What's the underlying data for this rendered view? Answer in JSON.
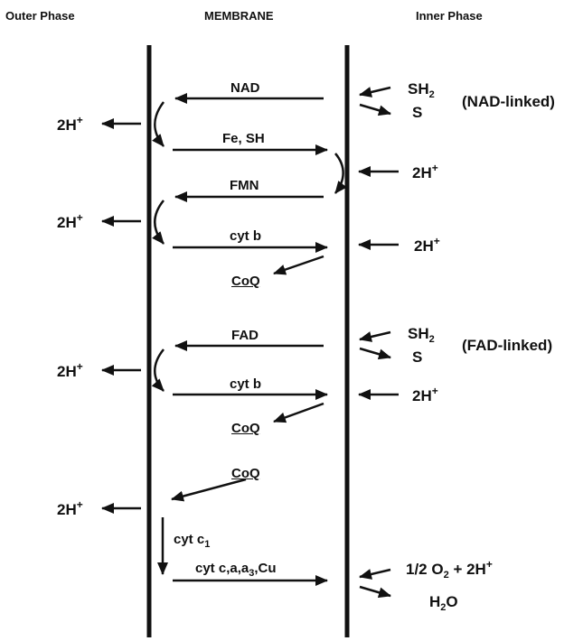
{
  "headers": {
    "outer": "Outer Phase",
    "membrane": "MEMBRANE",
    "inner": "Inner Phase"
  },
  "carriers": {
    "nad": "NAD",
    "fe_sh": "Fe, SH",
    "fmn": "FMN",
    "cytb_1": "cyt b",
    "coq_1": "CoQ",
    "fad": "FAD",
    "cytb_2": "cyt b",
    "coq_2": "CoQ",
    "coq_3": "CoQ",
    "cyt_c1": {
      "base": "cyt c",
      "sub": "1"
    },
    "cyt_caa3": {
      "a": "cyt c,a,a",
      "sub": "3",
      "b": ",Cu"
    }
  },
  "substrates": {
    "sh2_1": {
      "base": "SH",
      "sub": "2"
    },
    "s_1": "S",
    "nad_linked": "(NAD-linked)",
    "sh2_2": {
      "base": "SH",
      "sub": "2"
    },
    "s_2": "S",
    "fad_linked": "(FAD-linked)",
    "oxygen": {
      "a": "1/2 O",
      "sub": "2",
      "b": " + 2H",
      "sup": "+"
    },
    "water": {
      "a": "H",
      "sub": "2",
      "b": "O"
    }
  },
  "protons": {
    "outer_1": {
      "base": "2H",
      "sup": "+"
    },
    "outer_2": {
      "base": "2H",
      "sup": "+"
    },
    "outer_3": {
      "base": "2H",
      "sup": "+"
    },
    "outer_4": {
      "base": "2H",
      "sup": "+"
    },
    "inner_1": {
      "base": "2H",
      "sup": "+"
    },
    "inner_2": {
      "base": "2H",
      "sup": "+"
    },
    "inner_3": {
      "base": "2H",
      "sup": "+"
    }
  },
  "colors": {
    "ink": "#111111",
    "background": "#ffffff"
  }
}
